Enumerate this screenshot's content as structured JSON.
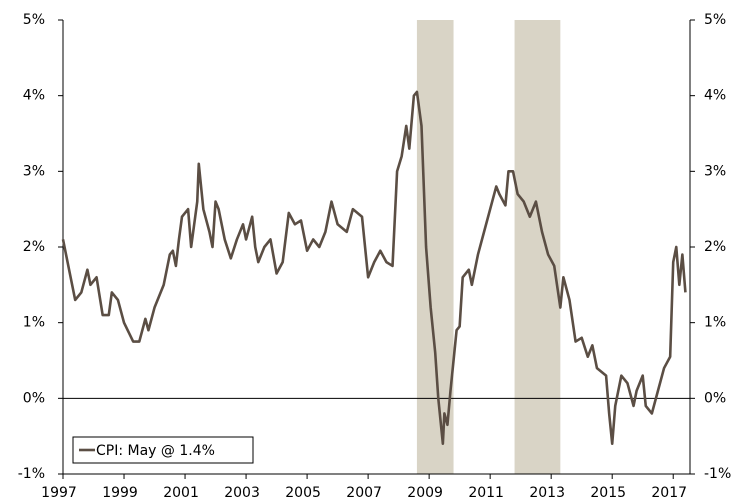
{
  "chart_data": {
    "type": "line",
    "legend_label": "CPI: May @ 1.4%",
    "legend_position": "lower left",
    "xlim": [
      1997,
      2017.55
    ],
    "xticks": [
      1997,
      1999,
      2001,
      2003,
      2005,
      2007,
      2009,
      2011,
      2013,
      2015,
      2017
    ],
    "ylim": [
      -1,
      5
    ],
    "yticks": [
      {
        "value": -1,
        "label": "-1%"
      },
      {
        "value": 0,
        "label": "0%"
      },
      {
        "value": 1,
        "label": "1%"
      },
      {
        "value": 2,
        "label": "2%"
      },
      {
        "value": 3,
        "label": "3%"
      },
      {
        "value": 4,
        "label": "4%"
      },
      {
        "value": 5,
        "label": "5%"
      }
    ],
    "y2lim": [
      -1,
      5
    ],
    "y2ticks": [
      {
        "value": -1,
        "label": "-1%"
      },
      {
        "value": 0,
        "label": "0%"
      },
      {
        "value": 1,
        "label": "1%"
      },
      {
        "value": 2,
        "label": "2%"
      },
      {
        "value": 3,
        "label": "3%"
      },
      {
        "value": 4,
        "label": "4%"
      },
      {
        "value": 5,
        "label": "5%"
      }
    ],
    "zero_line": true,
    "shaded_periods": [
      [
        2008.6,
        2009.8
      ],
      [
        2011.8,
        2013.3
      ]
    ],
    "shade_color": "#d9d4c6",
    "series": [
      {
        "name": "CPI",
        "color": "#5b4e44",
        "x": [
          1997.0,
          1997.2,
          1997.4,
          1997.6,
          1997.8,
          1997.9,
          1998.1,
          1998.3,
          1998.5,
          1998.6,
          1998.8,
          1999.0,
          1999.3,
          1999.5,
          1999.7,
          1999.8,
          2000.0,
          2000.3,
          2000.5,
          2000.6,
          2000.7,
          2000.8,
          2000.9,
          2001.1,
          2001.2,
          2001.4,
          2001.45,
          2001.6,
          2001.8,
          2001.9,
          2002.0,
          2002.1,
          2002.3,
          2002.5,
          2002.7,
          2002.9,
          2003.0,
          2003.2,
          2003.3,
          2003.4,
          2003.6,
          2003.8,
          2004.0,
          2004.2,
          2004.4,
          2004.6,
          2004.8,
          2005.0,
          2005.2,
          2005.4,
          2005.6,
          2005.8,
          2006.0,
          2006.3,
          2006.5,
          2006.8,
          2007.0,
          2007.2,
          2007.4,
          2007.6,
          2007.8,
          2007.95,
          2008.1,
          2008.25,
          2008.35,
          2008.5,
          2008.6,
          2008.75,
          2008.9,
          2009.05,
          2009.2,
          2009.3,
          2009.45,
          2009.5,
          2009.6,
          2009.7,
          2009.9,
          2010.0,
          2010.1,
          2010.3,
          2010.4,
          2010.5,
          2010.6,
          2010.8,
          2011.0,
          2011.2,
          2011.3,
          2011.5,
          2011.6,
          2011.75,
          2011.9,
          2012.1,
          2012.3,
          2012.5,
          2012.7,
          2012.9,
          2013.1,
          2013.3,
          2013.4,
          2013.6,
          2013.8,
          2014.0,
          2014.2,
          2014.35,
          2014.5,
          2014.8,
          2014.9,
          2015.0,
          2015.1,
          2015.3,
          2015.5,
          2015.7,
          2015.8,
          2016.0,
          2016.1,
          2016.3,
          2016.5,
          2016.7,
          2016.9,
          2017.0,
          2017.1,
          2017.2,
          2017.3,
          2017.4
        ],
        "values": [
          2.1,
          1.7,
          1.3,
          1.4,
          1.7,
          1.5,
          1.6,
          1.1,
          1.1,
          1.4,
          1.3,
          1.0,
          0.75,
          0.75,
          1.05,
          0.9,
          1.2,
          1.5,
          1.9,
          1.95,
          1.75,
          2.1,
          2.4,
          2.5,
          2.0,
          2.6,
          3.1,
          2.5,
          2.2,
          2.0,
          2.6,
          2.5,
          2.1,
          1.85,
          2.1,
          2.3,
          2.1,
          2.4,
          2.0,
          1.8,
          2.0,
          2.1,
          1.65,
          1.8,
          2.45,
          2.3,
          2.35,
          1.95,
          2.1,
          2.0,
          2.2,
          2.6,
          2.3,
          2.2,
          2.5,
          2.4,
          1.6,
          1.8,
          1.95,
          1.8,
          1.75,
          3.0,
          3.2,
          3.6,
          3.3,
          4.0,
          4.05,
          3.6,
          2.0,
          1.2,
          0.6,
          0.0,
          -0.6,
          -0.2,
          -0.35,
          0.1,
          0.9,
          0.95,
          1.6,
          1.7,
          1.5,
          1.7,
          1.9,
          2.2,
          2.5,
          2.8,
          2.7,
          2.55,
          3.0,
          3.0,
          2.7,
          2.6,
          2.4,
          2.6,
          2.2,
          1.9,
          1.75,
          1.2,
          1.6,
          1.3,
          0.75,
          0.8,
          0.55,
          0.7,
          0.4,
          0.3,
          -0.2,
          -0.6,
          -0.1,
          0.3,
          0.2,
          -0.1,
          0.1,
          0.3,
          -0.1,
          -0.2,
          0.1,
          0.4,
          0.55,
          1.8,
          2.0,
          1.5,
          1.9,
          1.4
        ]
      }
    ]
  }
}
